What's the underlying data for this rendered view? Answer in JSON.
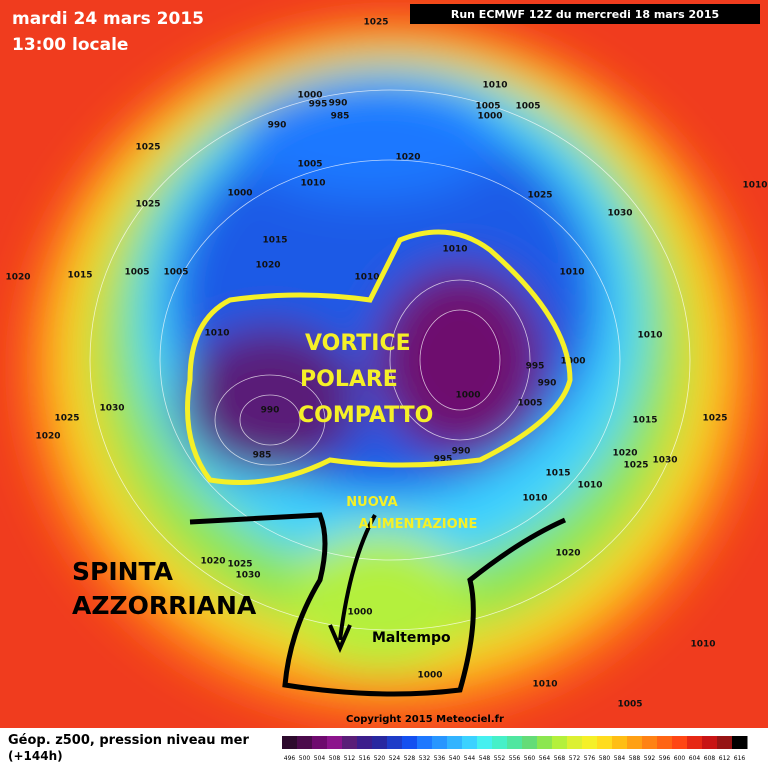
{
  "header": {
    "date": "mardi 24 mars 2015",
    "time": "13:00 locale",
    "run": "Run ECMWF 12Z du mercredi 18 mars 2015"
  },
  "annotations": {
    "vortex": [
      "VORTICE",
      "POLARE",
      "COMPATTO"
    ],
    "feed": [
      "NUOVA",
      "ALIMENTAZIONE"
    ],
    "push": [
      "SPINTA",
      "AZZORRIANA"
    ],
    "bad_weather": "Maltempo"
  },
  "isobar_labels": [
    1025,
    1000,
    995,
    990,
    985,
    990,
    1010,
    1005,
    1000,
    1005,
    1025,
    1020,
    1005,
    1010,
    1000,
    1025,
    1025,
    1030,
    1015,
    1020,
    1010,
    1010,
    1010,
    1020,
    1015,
    1005,
    1005,
    1010,
    995,
    990,
    1000,
    1010,
    990,
    985,
    1000,
    1005,
    990,
    995,
    1025,
    1030,
    1020,
    1015,
    1025,
    1020,
    1025,
    1030,
    1015,
    1010,
    1010,
    1020,
    1025,
    1030,
    1020,
    1000,
    1000,
    1010,
    1010,
    1005,
    1010
  ],
  "footer": {
    "title": "Géop. z500, pression niveau mer",
    "lead": "(+144h)",
    "copyright": "Copyright 2015 Meteociel.fr"
  },
  "color_scale": {
    "labels": [
      496,
      500,
      504,
      508,
      512,
      516,
      520,
      524,
      528,
      532,
      536,
      540,
      544,
      548,
      552,
      556,
      560,
      564,
      568,
      572,
      576,
      580,
      584,
      588,
      592,
      596,
      600,
      604,
      608,
      612,
      616
    ],
    "colors": [
      "#2d0a2d",
      "#4b0a4b",
      "#6e0a6e",
      "#8c148c",
      "#5a1e78",
      "#3c1e8c",
      "#2828a0",
      "#1e3cc8",
      "#1450f0",
      "#1e78ff",
      "#2896ff",
      "#32b4ff",
      "#3cd2ff",
      "#46f0f0",
      "#46f0c8",
      "#50e6a0",
      "#64dc78",
      "#8ce650",
      "#b4f03c",
      "#dcf032",
      "#f5f028",
      "#ffdc1e",
      "#ffbe14",
      "#ffa014",
      "#ff8214",
      "#ff6414",
      "#ff4614",
      "#e62814",
      "#c81414",
      "#961414",
      "#000000"
    ]
  }
}
